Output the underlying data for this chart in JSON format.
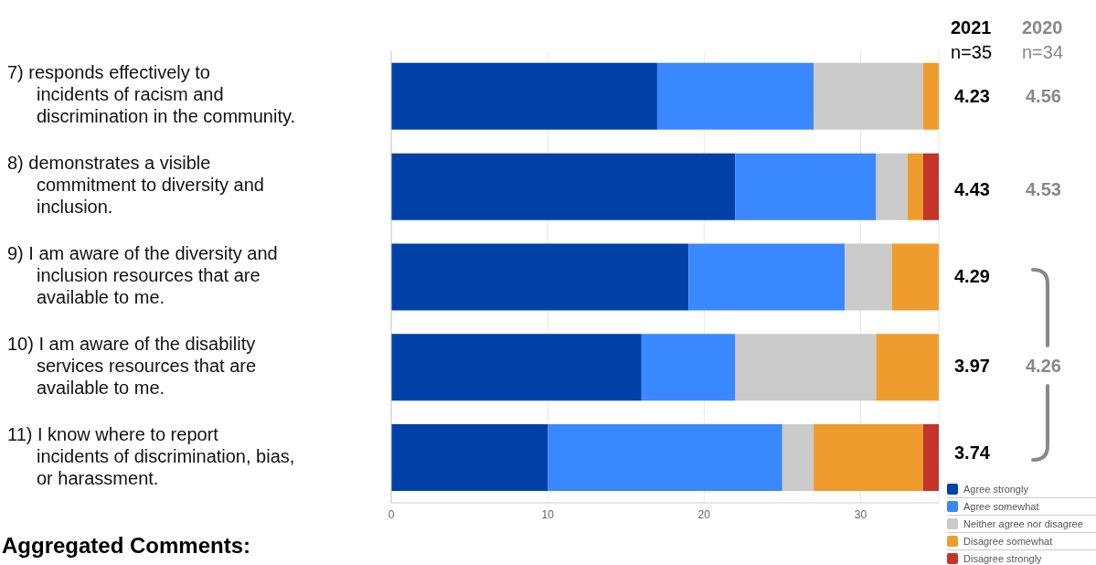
{
  "chart_data": {
    "type": "bar",
    "orientation": "horizontal",
    "stacked": true,
    "categories": [
      "7) responds effectively to incidents of racism and discrimination in the community.",
      "8) demonstrates a visible commitment to diversity and inclusion.",
      "9) I am aware of the diversity and inclusion resources that are available to me.",
      "10) I am aware of the disability services resources that are available to me.",
      "11) I know where to report incidents of discrimination, bias, or harassment."
    ],
    "series": [
      {
        "name": "Agree strongly",
        "color": "#0041a8",
        "values": [
          17,
          22,
          19,
          16,
          10
        ]
      },
      {
        "name": "Agree somewhat",
        "color": "#3a88fd",
        "values": [
          10,
          9,
          10,
          6,
          15
        ]
      },
      {
        "name": "Neither agree nor disagree",
        "color": "#cbcbcb",
        "values": [
          7,
          2,
          3,
          9,
          2
        ]
      },
      {
        "name": "Disagree somewhat",
        "color": "#ef9c2e",
        "values": [
          1,
          1,
          3,
          4,
          7
        ]
      },
      {
        "name": "Disagree strongly",
        "color": "#c5342b",
        "values": [
          0,
          1,
          0,
          0,
          1
        ]
      }
    ],
    "xlim": [
      0,
      35
    ],
    "xticks": [
      0,
      10,
      20,
      30
    ],
    "grid": "x",
    "legend": "bottom right",
    "annotations": [
      "2021",
      "n=35",
      "2020",
      "n=34",
      "4.23",
      "4.56",
      "4.43",
      "4.53",
      "4.29",
      "3.97",
      "3.74",
      "4.26",
      "Aggregated Comments:"
    ]
  }
}
